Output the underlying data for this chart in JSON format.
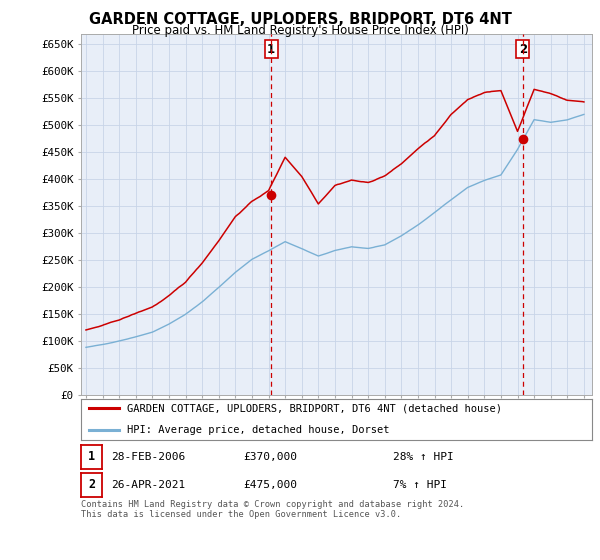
{
  "title": "GARDEN COTTAGE, UPLODERS, BRIDPORT, DT6 4NT",
  "subtitle": "Price paid vs. HM Land Registry's House Price Index (HPI)",
  "legend_line1": "GARDEN COTTAGE, UPLODERS, BRIDPORT, DT6 4NT (detached house)",
  "legend_line2": "HPI: Average price, detached house, Dorset",
  "transaction1_date": "28-FEB-2006",
  "transaction1_price": "£370,000",
  "transaction1_hpi": "28% ↑ HPI",
  "transaction1_year": 2006.16,
  "transaction1_value": 370000,
  "transaction2_date": "26-APR-2021",
  "transaction2_price": "£475,000",
  "transaction2_hpi": "7% ↑ HPI",
  "transaction2_year": 2021.32,
  "transaction2_value": 475000,
  "footer": "Contains HM Land Registry data © Crown copyright and database right 2024.\nThis data is licensed under the Open Government Licence v3.0.",
  "red_color": "#cc0000",
  "blue_color": "#7ab0d4",
  "grid_color": "#c8d4e8",
  "background_color": "#ffffff",
  "plot_background": "#e8eef8",
  "ylim": [
    0,
    670000
  ],
  "yticks": [
    0,
    50000,
    100000,
    150000,
    200000,
    250000,
    300000,
    350000,
    400000,
    450000,
    500000,
    550000,
    600000,
    650000
  ],
  "ytick_labels": [
    "£0",
    "£50K",
    "£100K",
    "£150K",
    "£200K",
    "£250K",
    "£300K",
    "£350K",
    "£400K",
    "£450K",
    "£500K",
    "£550K",
    "£600K",
    "£650K"
  ],
  "xlim_start": 1994.7,
  "xlim_end": 2025.5
}
